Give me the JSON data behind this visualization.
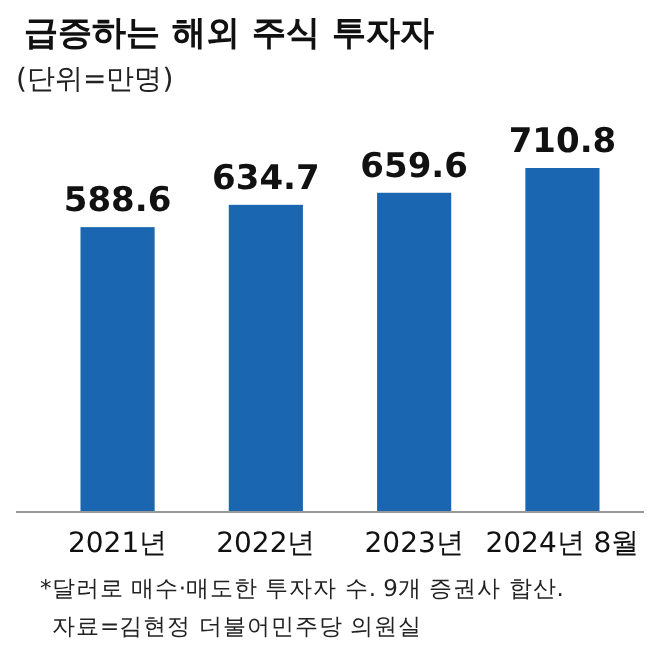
{
  "chart_data": {
    "type": "bar",
    "title": "급증하는 해외 주식 투자자",
    "subtitle": "(단위=만명)",
    "categories": [
      "2021년",
      "2022년",
      "2023년",
      "2024년 8월"
    ],
    "values": [
      588.6,
      634.7,
      659.6,
      710.8
    ],
    "color": "#1a66b0",
    "tick_labels": "x",
    "data_labels": true,
    "annotations": [
      "*달러로 매수·매도한 투자자 수. 9개 증권사 합산.",
      "자료=김현정 더불어민주당 의원실"
    ]
  }
}
